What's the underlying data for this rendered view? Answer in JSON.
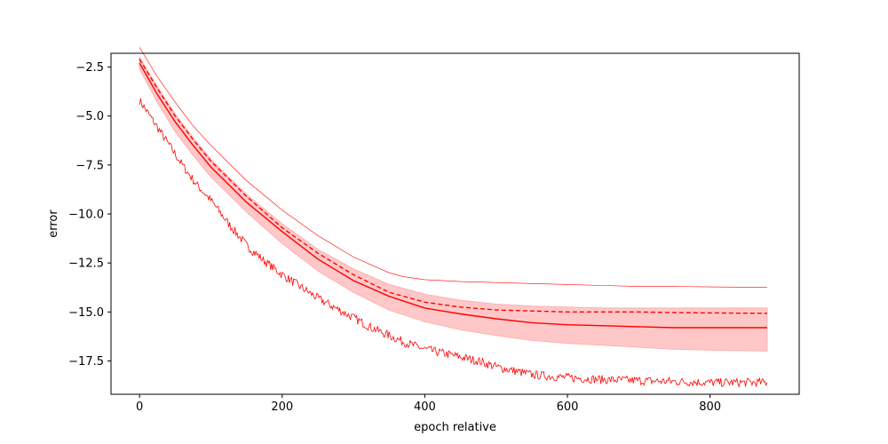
{
  "chart_data": {
    "type": "line",
    "title": "",
    "xlabel": "epoch relative",
    "ylabel": "error",
    "xlim": [
      -40,
      925
    ],
    "ylim": [
      -19.2,
      -1.8
    ],
    "grid": false,
    "legend": "none",
    "xticks": [
      {
        "value": 0,
        "label": "0"
      },
      {
        "value": 200,
        "label": "200"
      },
      {
        "value": 400,
        "label": "400"
      },
      {
        "value": 600,
        "label": "600"
      },
      {
        "value": 800,
        "label": "800"
      }
    ],
    "yticks": [
      {
        "value": -2.5,
        "label": "−2.5"
      },
      {
        "value": -5.0,
        "label": "−5.0"
      },
      {
        "value": -7.5,
        "label": "−7.5"
      },
      {
        "value": -10.0,
        "label": "−10.0"
      },
      {
        "value": -12.5,
        "label": "−12.5"
      },
      {
        "value": -15.0,
        "label": "−15.0"
      },
      {
        "value": -17.5,
        "label": "−17.5"
      }
    ],
    "colors": {
      "line": "#ff0000",
      "band": "#ffc8c8",
      "band_edge": "#ffb0b0"
    },
    "series": [
      {
        "role": "upper thin line",
        "style": "thin solid",
        "x": [
          0,
          25,
          50,
          75,
          100,
          150,
          200,
          250,
          300,
          350,
          370,
          400,
          450,
          500,
          550,
          600,
          650,
          700,
          750,
          800,
          880
        ],
        "y": [
          -1.5,
          -3.0,
          -4.3,
          -5.5,
          -6.5,
          -8.3,
          -9.8,
          -11.1,
          -12.2,
          -13.0,
          -13.2,
          -13.35,
          -13.45,
          -13.5,
          -13.55,
          -13.6,
          -13.65,
          -13.7,
          -13.7,
          -13.72,
          -13.75
        ]
      },
      {
        "role": "dashed line",
        "style": "dashed",
        "x": [
          0,
          25,
          50,
          75,
          100,
          150,
          200,
          250,
          300,
          350,
          400,
          450,
          500,
          550,
          600,
          650,
          700,
          750,
          800,
          880
        ],
        "y": [
          -2.1,
          -3.6,
          -5.0,
          -6.2,
          -7.3,
          -9.1,
          -10.7,
          -12.0,
          -13.1,
          -14.0,
          -14.5,
          -14.75,
          -14.9,
          -14.95,
          -15.0,
          -15.0,
          -15.0,
          -15.03,
          -15.05,
          -15.07
        ]
      },
      {
        "role": "mean line",
        "style": "solid",
        "x": [
          0,
          25,
          50,
          75,
          100,
          150,
          200,
          250,
          300,
          350,
          400,
          450,
          500,
          550,
          600,
          650,
          700,
          750,
          800,
          880
        ],
        "y": [
          -2.3,
          -3.9,
          -5.3,
          -6.5,
          -7.6,
          -9.4,
          -10.9,
          -12.3,
          -13.4,
          -14.2,
          -14.8,
          -15.1,
          -15.35,
          -15.55,
          -15.65,
          -15.7,
          -15.75,
          -15.8,
          -15.8,
          -15.8
        ]
      },
      {
        "role": "lower noisy line",
        "style": "thin noisy",
        "x": [
          0,
          20,
          40,
          60,
          80,
          100,
          125,
          150,
          175,
          200,
          225,
          250,
          275,
          300,
          325,
          350,
          375,
          400,
          425,
          450,
          475,
          500,
          525,
          550,
          600,
          650,
          700,
          750,
          800,
          880
        ],
        "y": [
          -4.2,
          -5.3,
          -6.4,
          -7.5,
          -8.5,
          -9.3,
          -10.5,
          -11.6,
          -12.4,
          -13.1,
          -13.7,
          -14.3,
          -14.8,
          -15.3,
          -15.8,
          -16.2,
          -16.6,
          -16.9,
          -17.1,
          -17.3,
          -17.5,
          -17.8,
          -18.0,
          -18.2,
          -18.35,
          -18.45,
          -18.5,
          -18.55,
          -18.6,
          -18.6
        ]
      }
    ],
    "band": {
      "x": [
        0,
        25,
        50,
        75,
        100,
        150,
        200,
        250,
        300,
        350,
        400,
        450,
        500,
        550,
        600,
        650,
        700,
        750,
        800,
        880
      ],
      "upper": [
        -2.0,
        -3.5,
        -4.9,
        -6.1,
        -7.2,
        -9.0,
        -10.5,
        -11.8,
        -12.8,
        -13.6,
        -14.1,
        -14.4,
        -14.6,
        -14.7,
        -14.75,
        -14.8,
        -14.8,
        -14.8,
        -14.8,
        -14.8
      ],
      "lower": [
        -2.6,
        -4.3,
        -5.8,
        -7.0,
        -8.1,
        -9.9,
        -11.5,
        -12.9,
        -14.0,
        -14.9,
        -15.5,
        -15.9,
        -16.2,
        -16.45,
        -16.6,
        -16.7,
        -16.8,
        -16.9,
        -16.95,
        -17.0
      ]
    }
  }
}
